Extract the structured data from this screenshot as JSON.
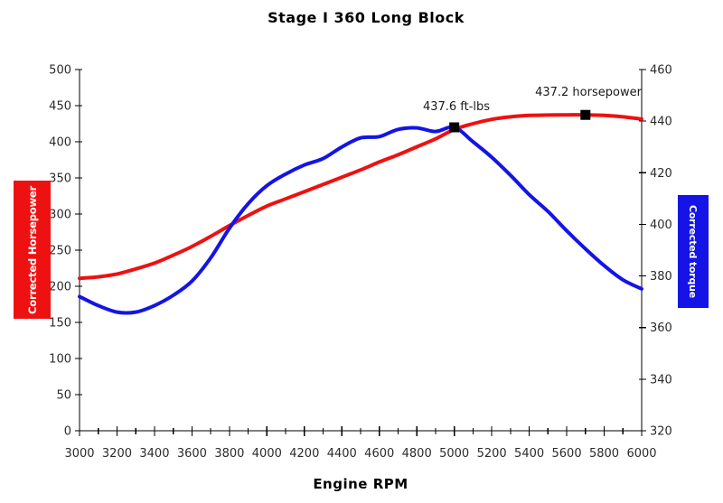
{
  "title": "Stage I 360 Long Block",
  "x_axis_title": "Engine RPM",
  "left_axis_title": "Corrected Horsepower",
  "right_axis_title": "Corrected torque",
  "colors": {
    "horsepower": "#ee1111",
    "torque": "#1414e6",
    "axis": "#000000",
    "tick_label": "#2b2b2b",
    "marker": "#000000",
    "background": "#ffffff"
  },
  "annotations": [
    {
      "text": "437.6 ft-lbs",
      "rpm": 5000,
      "value": 437.6,
      "series": "torque"
    },
    {
      "text": "437.2 horsepower",
      "rpm": 5700,
      "value": 437.2,
      "series": "horsepower"
    }
  ],
  "chart_data": {
    "type": "line",
    "title": "Stage I 360 Long Block",
    "xlabel": "Engine RPM",
    "grid": false,
    "x": [
      3000,
      3100,
      3200,
      3300,
      3400,
      3500,
      3600,
      3700,
      3800,
      3900,
      4000,
      4100,
      4200,
      4300,
      4400,
      4500,
      4600,
      4700,
      4800,
      4900,
      5000,
      5100,
      5200,
      5300,
      5400,
      5500,
      5600,
      5700,
      5800,
      5900,
      6000
    ],
    "x_axis": {
      "min": 3000,
      "max": 6000,
      "major_tick_step": 200,
      "minor_tick_step": 100,
      "tick_labels": [
        "3000",
        "3200",
        "3400",
        "3600",
        "3800",
        "4000",
        "4200",
        "4400",
        "4600",
        "4800",
        "5000",
        "5200",
        "5400",
        "5600",
        "5800",
        "6000"
      ]
    },
    "left_axis": {
      "label": "Corrected Horsepower",
      "min": 0,
      "max": 500,
      "tick_step": 50,
      "ticks": [
        0,
        50,
        100,
        150,
        200,
        250,
        300,
        350,
        400,
        450,
        500
      ]
    },
    "right_axis": {
      "label": "Corrected torque",
      "min": 320,
      "max": 460,
      "tick_step": 20,
      "ticks": [
        320,
        340,
        360,
        380,
        400,
        420,
        440,
        460
      ]
    },
    "series": [
      {
        "name": "Corrected Horsepower",
        "axis": "left",
        "color": "#ee1111",
        "peak": {
          "rpm": 5700,
          "value": 437.2
        },
        "values": [
          211,
          213,
          217,
          224,
          232,
          243,
          255,
          269,
          284,
          298,
          311,
          321,
          331,
          341,
          351,
          361,
          372,
          382,
          393,
          404,
          417,
          425,
          431,
          434.5,
          436.5,
          437,
          437.2,
          437.2,
          436.5,
          434.5,
          431.5
        ]
      },
      {
        "name": "Corrected torque",
        "axis": "right",
        "color": "#1414e6",
        "peak": {
          "rpm": 5000,
          "value": 437.6
        },
        "values": [
          372,
          368.5,
          366,
          366,
          368.5,
          372.5,
          378,
          387,
          398.5,
          408,
          415,
          419.5,
          423,
          425.5,
          430,
          433.5,
          434,
          436.8,
          437.4,
          436,
          437.6,
          432,
          426,
          419,
          411.5,
          405,
          397.5,
          390.5,
          384,
          378.5,
          375
        ]
      }
    ]
  }
}
